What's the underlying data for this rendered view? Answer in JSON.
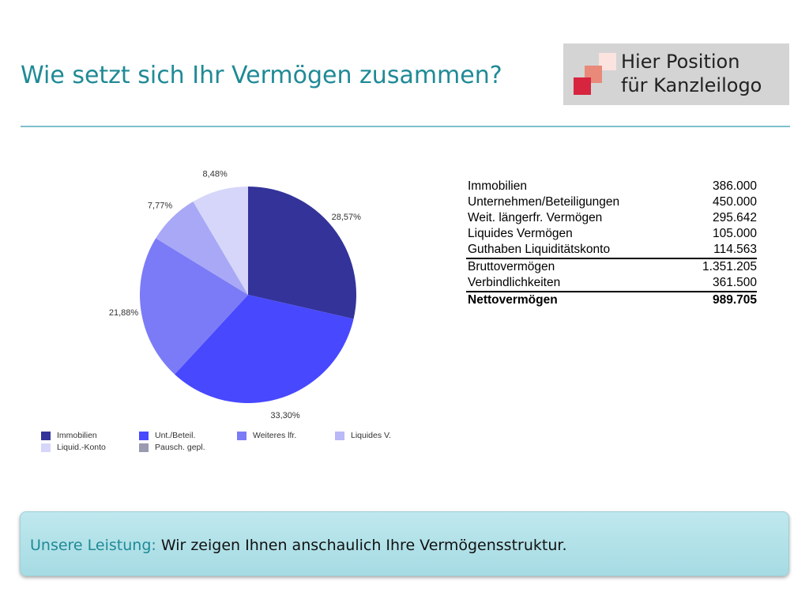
{
  "header": {
    "title": "Wie setzt sich Ihr Vermögen zusammen?"
  },
  "logo": {
    "line1": "Hier Position",
    "line2": "für Kanzleilogo",
    "colors": [
      "#fbe3df",
      "#e8897a",
      "#d7243f"
    ]
  },
  "chart_data": {
    "type": "pie",
    "slices": [
      {
        "label": "28,57%",
        "value": 28.57,
        "color": "#33339a"
      },
      {
        "label": "33,30%",
        "value": 33.3,
        "color": "#4848ff"
      },
      {
        "label": "21,88%",
        "value": 21.88,
        "color": "#7b7bf7"
      },
      {
        "label": "7,77%",
        "value": 7.77,
        "color": "#a8a8f7"
      },
      {
        "label": "8,48%",
        "value": 8.48,
        "color": "#d6d6fa"
      }
    ],
    "legend": [
      {
        "label": "Immobilien",
        "color": "#33339a"
      },
      {
        "label": "Unt./Beteil.",
        "color": "#4848ff"
      },
      {
        "label": "Weiteres lfr.",
        "color": "#7b7bf7"
      },
      {
        "label": "Liquides V.",
        "color": "#b9b9f7"
      },
      {
        "label": "Liquid.-Konto",
        "color": "#d6d6fa"
      },
      {
        "label": "Pausch. gepl.",
        "color": "#9a9ab0"
      }
    ]
  },
  "table": {
    "rows": [
      {
        "label": "Immobilien",
        "value": "386.000"
      },
      {
        "label": "Unternehmen/Beteiligungen",
        "value": "450.000"
      },
      {
        "label": "Weit. längerfr. Vermögen",
        "value": "295.642"
      },
      {
        "label": "Liquides Vermögen",
        "value": "105.000"
      },
      {
        "label": "Guthaben Liquiditätskonto",
        "value": "114.563"
      },
      {
        "label": "Bruttovermögen",
        "value": "1.351.205"
      },
      {
        "label": "Verbindlichkeiten",
        "value": "361.500"
      },
      {
        "label": "Nettovermögen",
        "value": "989.705"
      }
    ]
  },
  "banner": {
    "label": "Unsere Leistung:",
    "text": "Wir zeigen Ihnen anschaulich Ihre Vermögensstruktur."
  }
}
